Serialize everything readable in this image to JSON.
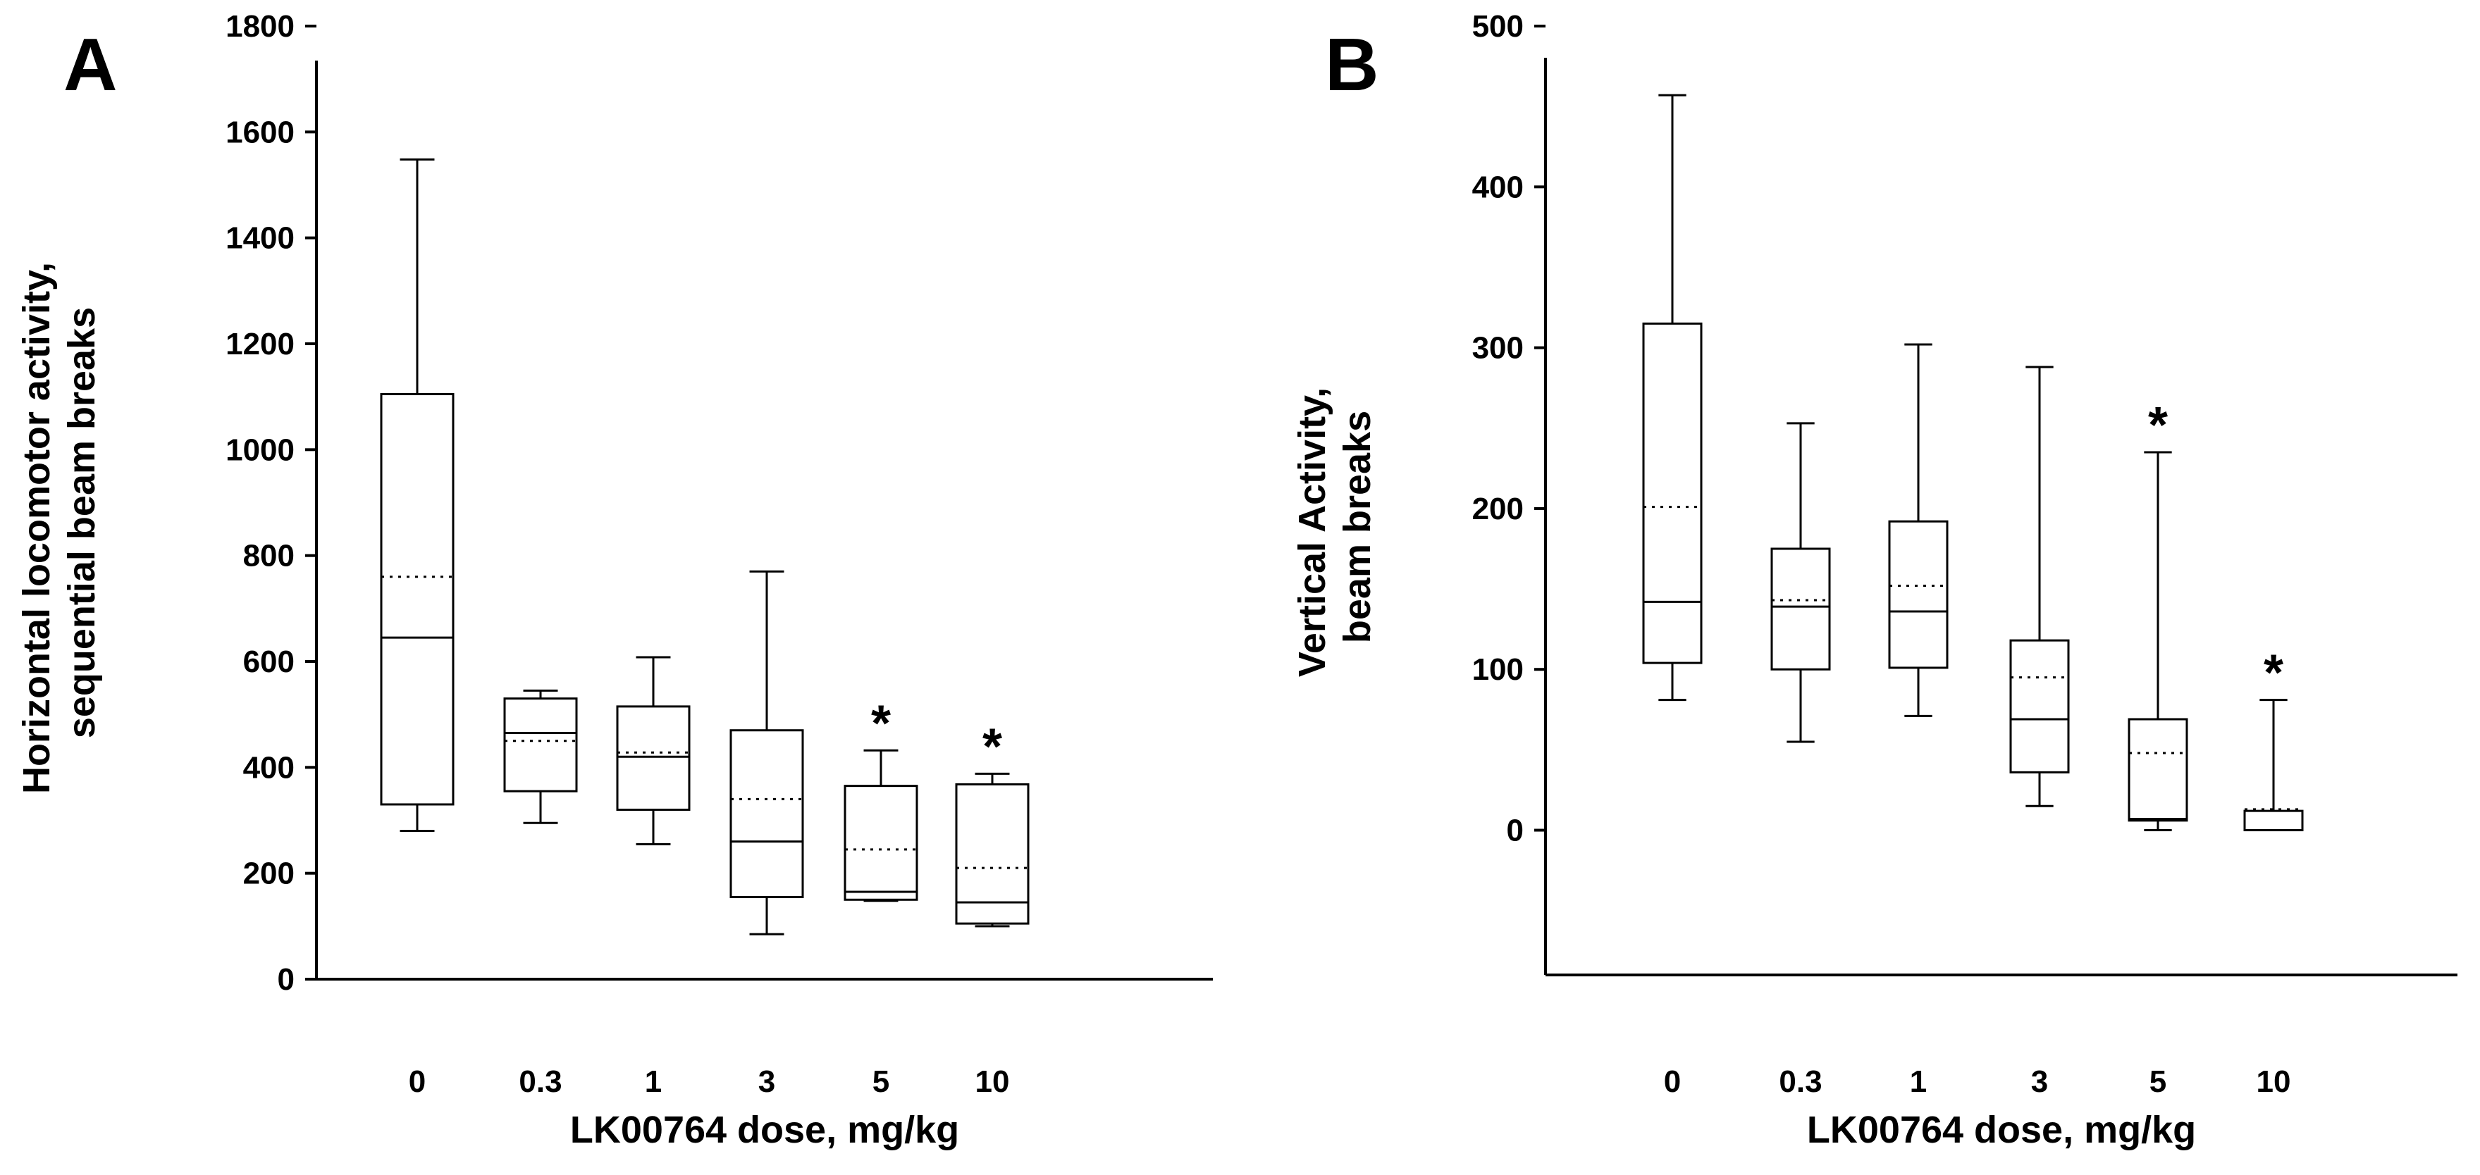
{
  "chart_data": [
    {
      "type": "box",
      "panel_label": "A",
      "xlabel": "LK00764 dose, mg/kg",
      "ylabel": [
        "Horizontal locomotor activity,",
        "sequential beam breaks"
      ],
      "ylim": [
        0,
        1800
      ],
      "yticks": [
        0,
        200,
        400,
        600,
        800,
        1000,
        1200,
        1400,
        1600,
        1800
      ],
      "categories": [
        "0",
        "0.3",
        "1",
        "3",
        "5",
        "10"
      ],
      "boxes": [
        {
          "min": 280,
          "q1": 330,
          "median": 645,
          "mean": 760,
          "q3": 1105,
          "max": 1548,
          "significant": false
        },
        {
          "min": 295,
          "q1": 355,
          "median": 465,
          "mean": 450,
          "q3": 530,
          "max": 545,
          "significant": false
        },
        {
          "min": 255,
          "q1": 320,
          "median": 420,
          "mean": 428,
          "q3": 515,
          "max": 608,
          "significant": false
        },
        {
          "min": 85,
          "q1": 155,
          "median": 260,
          "mean": 340,
          "q3": 470,
          "max": 770,
          "significant": false
        },
        {
          "min": 148,
          "q1": 150,
          "median": 165,
          "mean": 245,
          "q3": 365,
          "max": 432,
          "significant": true
        },
        {
          "min": 100,
          "q1": 105,
          "median": 145,
          "mean": 210,
          "q3": 368,
          "max": 388,
          "significant": true
        }
      ],
      "significance_marker": "*"
    },
    {
      "type": "box",
      "panel_label": "B",
      "xlabel": "LK00764 dose, mg/kg",
      "ylabel": [
        "Vertical Activity,",
        "beam breaks"
      ],
      "ylim": [
        -90,
        500
      ],
      "yticks": [
        0,
        100,
        200,
        300,
        400,
        500
      ],
      "categories": [
        "0",
        "0.3",
        "1",
        "3",
        "5",
        "10"
      ],
      "boxes": [
        {
          "min": 81,
          "q1": 104,
          "median": 142,
          "mean": 201,
          "q3": 315,
          "max": 457,
          "significant": false
        },
        {
          "min": 55,
          "q1": 100,
          "median": 139,
          "mean": 143,
          "q3": 175,
          "max": 253,
          "significant": false
        },
        {
          "min": 71,
          "q1": 101,
          "median": 136,
          "mean": 152,
          "q3": 192,
          "max": 302,
          "significant": false
        },
        {
          "min": 15,
          "q1": 36,
          "median": 69,
          "mean": 95,
          "q3": 118,
          "max": 288,
          "significant": false
        },
        {
          "min": 0,
          "q1": 6,
          "median": 7,
          "mean": 48,
          "q3": 69,
          "max": 235,
          "significant": true
        },
        {
          "min": 0,
          "q1": 0,
          "median": 0,
          "mean": 13,
          "q3": 12,
          "max": 81,
          "significant": true
        }
      ],
      "significance_marker": "*"
    }
  ]
}
